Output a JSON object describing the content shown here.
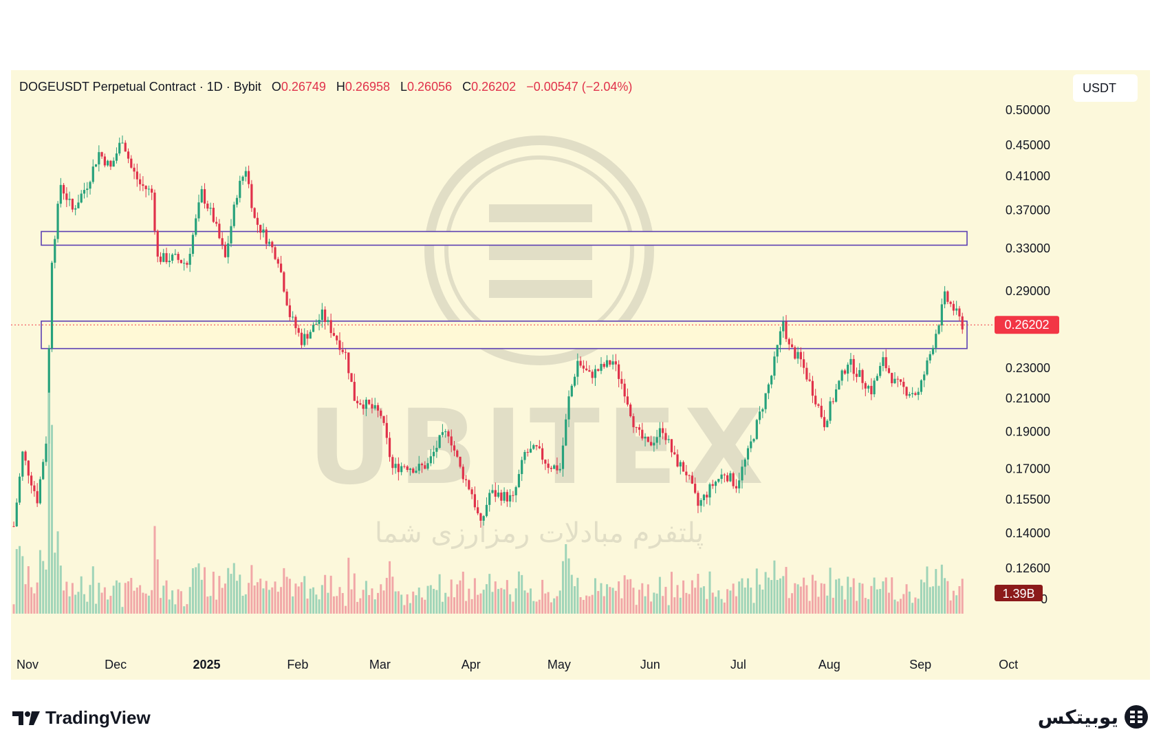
{
  "header": {
    "symbol": "DOGEUSDT Perpetual Contract · 1D · Bybit",
    "open_label": "O",
    "open": "0.26749",
    "high_label": "H",
    "high": "0.26958",
    "low_label": "L",
    "low": "0.26056",
    "close_label": "C",
    "close": "0.26202",
    "change": "−0.00547 (−2.04%)"
  },
  "currency": "USDT",
  "watermark": {
    "brand": "UBITEX",
    "tagline": "پلتفرم مبادلات رمزارزی شما"
  },
  "footer": {
    "tradingview": "TradingView",
    "brand": "یوبیتکس"
  },
  "colors": {
    "up": "#26a17b",
    "down": "#e0314a",
    "zone_border": "#5b3fb2",
    "price_label": "#f23645",
    "volume_label": "#8b1a1a"
  },
  "chart_data": {
    "type": "candlestick",
    "x_labels": [
      "Nov",
      "Dec",
      "2025",
      "Feb",
      "Mar",
      "Apr",
      "May",
      "Jun",
      "Jul",
      "Aug",
      "Sep",
      "Oct"
    ],
    "y_ticks": [
      "0.50000",
      "0.45000",
      "0.41000",
      "0.37000",
      "0.33000",
      "0.29000",
      "0.23000",
      "0.21000",
      "0.19000",
      "0.17000",
      "0.15500",
      "0.14000",
      "0.12600"
    ],
    "y_scale": "log",
    "volume_axis_label": "0",
    "last_price": "0.26202",
    "volume_label": "1.39B",
    "zones": [
      {
        "low": 0.333,
        "high": 0.347
      },
      {
        "low": 0.244,
        "high": 0.265
      }
    ],
    "waypoints": [
      [
        "Nov 1",
        0.143
      ],
      [
        "Nov 4",
        0.178
      ],
      [
        "Nov 9",
        0.155
      ],
      [
        "Nov 12",
        0.185
      ],
      [
        "Nov 14",
        0.32
      ],
      [
        "Nov 17",
        0.4
      ],
      [
        "Nov 21",
        0.37
      ],
      [
        "Nov 26",
        0.4
      ],
      [
        "Nov 30",
        0.44
      ],
      [
        "Dec 4",
        0.42
      ],
      [
        "Dec 8",
        0.46
      ],
      [
        "Dec 11",
        0.42
      ],
      [
        "Dec 14",
        0.4
      ],
      [
        "Dec 18",
        0.39
      ],
      [
        "Dec 20",
        0.32
      ],
      [
        "Dec 26",
        0.32
      ],
      [
        "Dec 30",
        0.315
      ],
      [
        "Jan 4",
        0.39
      ],
      [
        "Jan 8",
        0.36
      ],
      [
        "Jan 12",
        0.32
      ],
      [
        "Jan 16",
        0.39
      ],
      [
        "Jan 19",
        0.42
      ],
      [
        "Jan 22",
        0.36
      ],
      [
        "Jan 26",
        0.34
      ],
      [
        "Jan 30",
        0.32
      ],
      [
        "Feb 3",
        0.27
      ],
      [
        "Feb 7",
        0.25
      ],
      [
        "Feb 11",
        0.26
      ],
      [
        "Feb 14",
        0.27
      ],
      [
        "Feb 18",
        0.255
      ],
      [
        "Feb 22",
        0.24
      ],
      [
        "Feb 25",
        0.21
      ],
      [
        "Mar 2",
        0.205
      ],
      [
        "Mar 6",
        0.2
      ],
      [
        "Mar 10",
        0.17
      ],
      [
        "Mar 14",
        0.172
      ],
      [
        "Mar 18",
        0.17
      ],
      [
        "Mar 22",
        0.172
      ],
      [
        "Mar 26",
        0.185
      ],
      [
        "Mar 29",
        0.19
      ],
      [
        "Apr 2",
        0.17
      ],
      [
        "Apr 6",
        0.158
      ],
      [
        "Apr 9",
        0.143
      ],
      [
        "Apr 12",
        0.158
      ],
      [
        "Apr 16",
        0.157
      ],
      [
        "Apr 20",
        0.155
      ],
      [
        "Apr 24",
        0.178
      ],
      [
        "Apr 28",
        0.18
      ],
      [
        "May 2",
        0.172
      ],
      [
        "May 6",
        0.17
      ],
      [
        "May 9",
        0.21
      ],
      [
        "May 12",
        0.235
      ],
      [
        "May 16",
        0.225
      ],
      [
        "May 20",
        0.23
      ],
      [
        "May 24",
        0.235
      ],
      [
        "May 28",
        0.215
      ],
      [
        "Jun 1",
        0.19
      ],
      [
        "Jun 5",
        0.182
      ],
      [
        "Jun 10",
        0.192
      ],
      [
        "Jun 14",
        0.175
      ],
      [
        "Jun 18",
        0.168
      ],
      [
        "Jun 22",
        0.152
      ],
      [
        "Jun 27",
        0.162
      ],
      [
        "Jul 1",
        0.168
      ],
      [
        "Jul 5",
        0.162
      ],
      [
        "Jul 9",
        0.178
      ],
      [
        "Jul 13",
        0.2
      ],
      [
        "Jul 17",
        0.225
      ],
      [
        "Jul 21",
        0.265
      ],
      [
        "Jul 23",
        0.245
      ],
      [
        "Jul 27",
        0.235
      ],
      [
        "Jul 31",
        0.215
      ],
      [
        "Aug 4",
        0.195
      ],
      [
        "Aug 8",
        0.215
      ],
      [
        "Aug 12",
        0.235
      ],
      [
        "Aug 16",
        0.225
      ],
      [
        "Aug 20",
        0.215
      ],
      [
        "Aug 24",
        0.235
      ],
      [
        "Aug 28",
        0.22
      ],
      [
        "Sep 1",
        0.215
      ],
      [
        "Sep 5",
        0.213
      ],
      [
        "Sep 9",
        0.24
      ],
      [
        "Sep 12",
        0.265
      ],
      [
        "Sep 14",
        0.285
      ],
      [
        "Sep 17",
        0.275
      ],
      [
        "Sep 20",
        0.262
      ]
    ]
  }
}
